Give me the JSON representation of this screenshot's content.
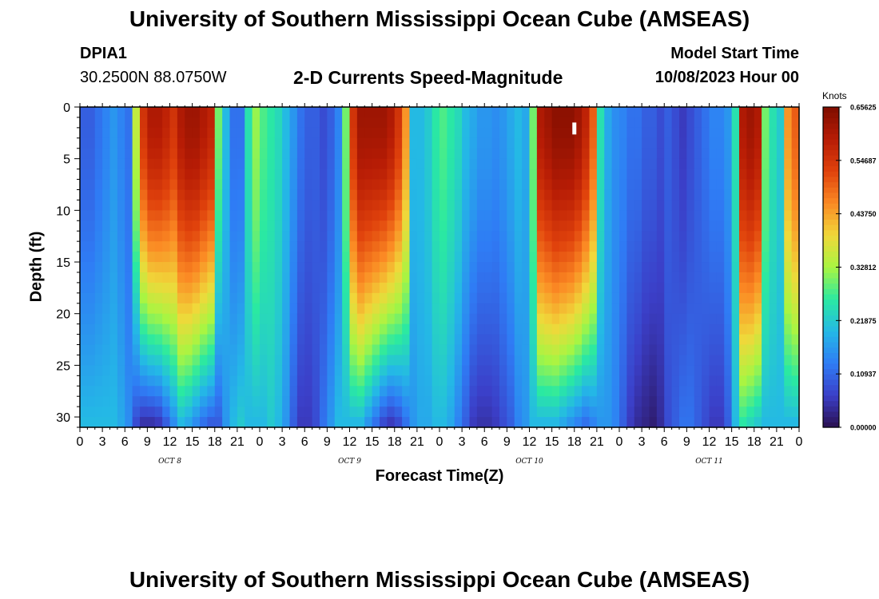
{
  "header": {
    "title": "University of Southern Mississippi Ocean Cube (AMSEAS)",
    "station_id": "DPIA1",
    "station_coords": "30.2500N  88.0750W",
    "model_start_label": "Model Start Time",
    "model_start_value": "10/08/2023 Hour 00"
  },
  "footer": {
    "title": "University of Southern Mississippi Ocean Cube (AMSEAS)"
  },
  "chart_data": {
    "type": "heatmap",
    "title": "2-D Currents Speed-Magnitude",
    "xlabel": "Forecast Time(Z)",
    "ylabel": "Depth (ft)",
    "x_hours": [
      0,
      96
    ],
    "ylim": [
      0,
      31
    ],
    "y_ticks": [
      "0",
      "5",
      "10",
      "15",
      "20",
      "25",
      "30"
    ],
    "x_tick_labels": [
      "0",
      "3",
      "6",
      "9",
      "12",
      "15",
      "18",
      "21",
      "0",
      "3",
      "6",
      "9",
      "12",
      "15",
      "18",
      "21",
      "0",
      "3",
      "6",
      "9",
      "12",
      "15",
      "18",
      "21",
      "0",
      "3",
      "6",
      "9",
      "12",
      "15",
      "18",
      "21",
      "0"
    ],
    "day_labels": [
      "OCT 8",
      "OCT 9",
      "OCT 10",
      "OCT 11"
    ],
    "colorbar": {
      "label": "Knots",
      "min": 0.0,
      "max": 0.65625,
      "ticks": [
        "0.65625",
        "0.54687",
        "0.43750",
        "0.32812",
        "0.21875",
        "0.10937",
        "0.00000"
      ]
    },
    "surface_speed_by_hour": [
      0.1,
      0.1,
      0.12,
      0.14,
      0.16,
      0.14,
      0.12,
      0.35,
      0.55,
      0.6,
      0.6,
      0.58,
      0.55,
      0.6,
      0.62,
      0.62,
      0.6,
      0.58,
      0.3,
      0.2,
      0.12,
      0.12,
      0.25,
      0.32,
      0.28,
      0.26,
      0.24,
      0.2,
      0.16,
      0.12,
      0.1,
      0.1,
      0.08,
      0.1,
      0.14,
      0.3,
      0.55,
      0.62,
      0.62,
      0.62,
      0.62,
      0.6,
      0.55,
      0.45,
      0.2,
      0.2,
      0.22,
      0.26,
      0.28,
      0.26,
      0.24,
      0.2,
      0.18,
      0.16,
      0.16,
      0.15,
      0.16,
      0.18,
      0.2,
      0.18,
      0.3,
      0.6,
      0.62,
      0.64,
      0.64,
      0.64,
      0.62,
      0.58,
      0.5,
      0.25,
      0.18,
      0.15,
      0.14,
      0.12,
      0.12,
      0.1,
      0.1,
      0.08,
      0.1,
      0.08,
      0.06,
      0.08,
      0.1,
      0.12,
      0.14,
      0.14,
      0.16,
      0.25,
      0.6,
      0.62,
      0.6,
      0.3,
      0.25,
      0.22,
      0.45,
      0.5,
      0.5
    ],
    "bottom_speed_by_hour": [
      0.2,
      0.2,
      0.2,
      0.2,
      0.2,
      0.18,
      0.15,
      0.08,
      0.05,
      0.05,
      0.06,
      0.1,
      0.15,
      0.2,
      0.18,
      0.15,
      0.12,
      0.1,
      0.1,
      0.16,
      0.2,
      0.22,
      0.2,
      0.2,
      0.2,
      0.22,
      0.2,
      0.16,
      0.1,
      0.06,
      0.06,
      0.08,
      0.12,
      0.16,
      0.2,
      0.2,
      0.2,
      0.2,
      0.16,
      0.12,
      0.08,
      0.06,
      0.08,
      0.12,
      0.16,
      0.18,
      0.18,
      0.2,
      0.2,
      0.18,
      0.14,
      0.1,
      0.06,
      0.05,
      0.05,
      0.06,
      0.08,
      0.1,
      0.14,
      0.16,
      0.2,
      0.2,
      0.2,
      0.2,
      0.18,
      0.16,
      0.14,
      0.12,
      0.14,
      0.16,
      0.16,
      0.14,
      0.1,
      0.06,
      0.04,
      0.03,
      0.02,
      0.04,
      0.08,
      0.1,
      0.12,
      0.12,
      0.1,
      0.08,
      0.06,
      0.06,
      0.1,
      0.2,
      0.26,
      0.24,
      0.22,
      0.2,
      0.2,
      0.2,
      0.2,
      0.2,
      0.2
    ],
    "annotation": "small white marker near hour 18 of OCT 10 at ~2 ft depth"
  }
}
